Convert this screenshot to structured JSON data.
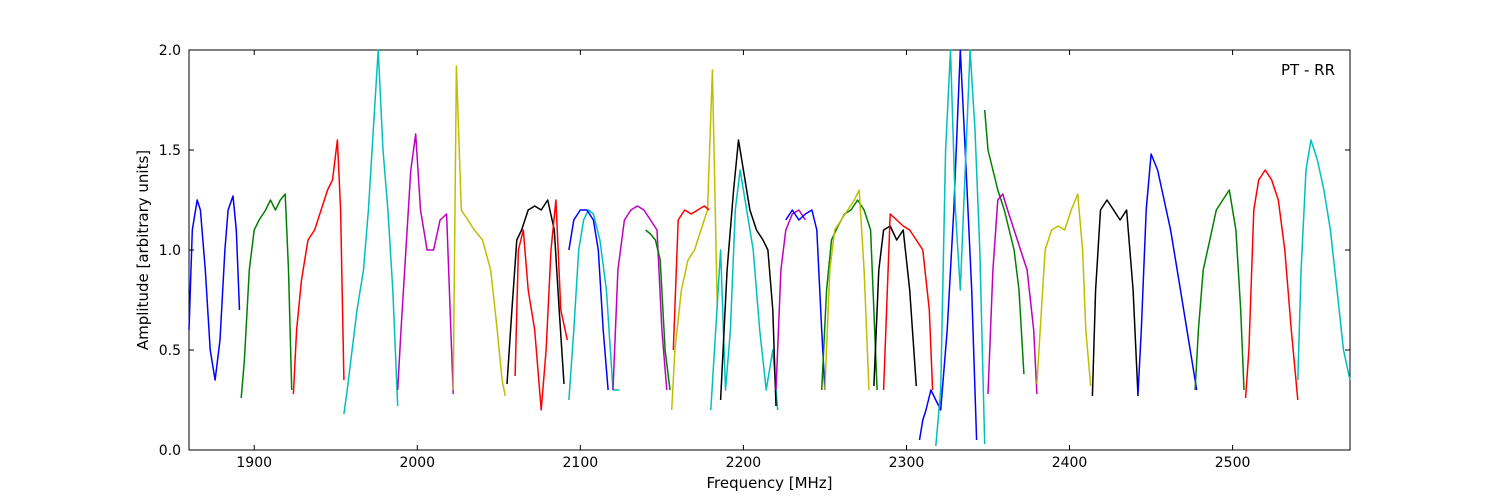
{
  "chart_data": {
    "type": "line",
    "title": "",
    "annotation": "PT - RR",
    "xlabel": "Frequency [MHz]",
    "ylabel": "Amplitude [arbitrary units]",
    "xlim": [
      1860,
      2572
    ],
    "ylim": [
      0.0,
      2.0
    ],
    "xticks": [
      1900,
      2000,
      2100,
      2200,
      2300,
      2400,
      2500
    ],
    "yticks": [
      0.0,
      0.5,
      1.0,
      1.5,
      2.0
    ],
    "xtick_labels": [
      "1900",
      "2000",
      "2100",
      "2200",
      "2300",
      "2400",
      "2500"
    ],
    "ytick_labels": [
      "0.0",
      "0.5",
      "1.0",
      "1.5",
      "2.0"
    ],
    "grid": false,
    "series": [
      {
        "color": "#0000ff",
        "x": [
          1860,
          1862,
          1865,
          1867,
          1870,
          1873,
          1876,
          1879,
          1882,
          1884,
          1887,
          1889,
          1891
        ],
        "y": [
          0.6,
          1.1,
          1.25,
          1.2,
          0.9,
          0.5,
          0.35,
          0.55,
          1.0,
          1.2,
          1.27,
          1.1,
          0.7
        ]
      },
      {
        "color": "#008000",
        "x": [
          1892,
          1894,
          1897,
          1900,
          1903,
          1907,
          1910,
          1913,
          1916,
          1919,
          1921,
          1923
        ],
        "y": [
          0.26,
          0.45,
          0.9,
          1.1,
          1.15,
          1.2,
          1.25,
          1.2,
          1.25,
          1.28,
          0.9,
          0.3
        ]
      },
      {
        "color": "#ff0000",
        "x": [
          1924,
          1926,
          1929,
          1933,
          1937,
          1941,
          1945,
          1948,
          1951,
          1953,
          1955
        ],
        "y": [
          0.28,
          0.6,
          0.85,
          1.05,
          1.1,
          1.2,
          1.3,
          1.35,
          1.55,
          1.2,
          0.35
        ]
      },
      {
        "color": "#00bfbf",
        "x": [
          1955,
          1957,
          1960,
          1963,
          1967,
          1970,
          1973,
          1976,
          1979,
          1982,
          1985,
          1988
        ],
        "y": [
          0.18,
          0.3,
          0.5,
          0.7,
          0.9,
          1.2,
          1.6,
          2.0,
          1.5,
          1.2,
          0.8,
          0.22
        ]
      },
      {
        "color": "#bf00bf",
        "x": [
          1988,
          1990,
          1993,
          1996,
          1999,
          2002,
          2006,
          2010,
          2014,
          2018,
          2022
        ],
        "y": [
          0.3,
          0.6,
          1.0,
          1.4,
          1.58,
          1.2,
          1.0,
          1.0,
          1.15,
          1.18,
          0.28
        ]
      },
      {
        "color": "#bfbf00",
        "x": [
          2022,
          2024,
          2027,
          2031,
          2035,
          2040,
          2045,
          2049,
          2052,
          2054
        ],
        "y": [
          0.3,
          1.92,
          1.2,
          1.15,
          1.1,
          1.05,
          0.9,
          0.6,
          0.35,
          0.27
        ]
      },
      {
        "color": "#000000",
        "x": [
          2055,
          2058,
          2061,
          2064,
          2068,
          2072,
          2076,
          2080,
          2084,
          2087,
          2090
        ],
        "y": [
          0.33,
          0.7,
          1.05,
          1.1,
          1.2,
          1.22,
          1.2,
          1.25,
          1.1,
          0.7,
          0.33
        ]
      },
      {
        "color": "#ff0000",
        "x": [
          2060,
          2062,
          2065,
          2068,
          2072,
          2076,
          2079,
          2082,
          2085,
          2088,
          2092
        ],
        "y": [
          0.37,
          1.0,
          1.1,
          0.8,
          0.6,
          0.2,
          0.5,
          1.0,
          1.25,
          0.7,
          0.55
        ]
      },
      {
        "color": "#00bfbf",
        "x": [
          2093,
          2096,
          2099,
          2102,
          2105,
          2108,
          2112,
          2116,
          2120,
          2124
        ],
        "y": [
          0.25,
          0.6,
          1.0,
          1.15,
          1.2,
          1.18,
          1.05,
          0.8,
          0.3,
          0.3
        ]
      },
      {
        "color": "#0000ff",
        "x": [
          2093,
          2096,
          2100,
          2104,
          2108,
          2111,
          2114,
          2117
        ],
        "y": [
          1.0,
          1.15,
          1.2,
          1.2,
          1.15,
          1.0,
          0.6,
          0.3
        ]
      },
      {
        "color": "#bf00bf",
        "x": [
          2120,
          2123,
          2127,
          2131,
          2135,
          2139,
          2143,
          2147,
          2150,
          2153
        ],
        "y": [
          0.3,
          0.9,
          1.15,
          1.2,
          1.22,
          1.2,
          1.15,
          1.1,
          0.6,
          0.3
        ]
      },
      {
        "color": "#008000",
        "x": [
          2140,
          2143,
          2146,
          2149,
          2152,
          2155
        ],
        "y": [
          1.1,
          1.08,
          1.05,
          0.95,
          0.5,
          0.3
        ]
      },
      {
        "color": "#bfbf00",
        "x": [
          2156,
          2158,
          2162,
          2166,
          2170,
          2174,
          2178,
          2181,
          2184
        ],
        "y": [
          0.2,
          0.5,
          0.8,
          0.95,
          1.0,
          1.1,
          1.2,
          1.9,
          0.7
        ]
      },
      {
        "color": "#ff0000",
        "x": [
          2157,
          2160,
          2164,
          2168,
          2172,
          2176,
          2179
        ],
        "y": [
          0.5,
          1.15,
          1.2,
          1.18,
          1.2,
          1.22,
          1.2
        ]
      },
      {
        "color": "#00bfbf",
        "x": [
          2180,
          2183,
          2186,
          2189,
          2192,
          2195,
          2198,
          2202,
          2206,
          2210,
          2214,
          2218,
          2221
        ],
        "y": [
          0.2,
          0.6,
          1.0,
          0.3,
          0.6,
          1.2,
          1.4,
          1.2,
          1.0,
          0.6,
          0.3,
          0.5,
          0.2
        ]
      },
      {
        "color": "#000000",
        "x": [
          2186,
          2190,
          2194,
          2197,
          2200,
          2204,
          2208,
          2212,
          2215,
          2218,
          2220
        ],
        "y": [
          0.25,
          0.9,
          1.3,
          1.55,
          1.4,
          1.2,
          1.1,
          1.05,
          1.0,
          0.7,
          0.22
        ]
      },
      {
        "color": "#bf00bf",
        "x": [
          2220,
          2223,
          2226,
          2230,
          2234,
          2238
        ],
        "y": [
          0.3,
          0.9,
          1.1,
          1.18,
          1.2,
          1.15
        ]
      },
      {
        "color": "#0000ff",
        "x": [
          2226,
          2230,
          2234,
          2238,
          2242,
          2245,
          2248,
          2250
        ],
        "y": [
          1.15,
          1.2,
          1.15,
          1.18,
          1.2,
          1.1,
          0.6,
          0.3
        ]
      },
      {
        "color": "#008000",
        "x": [
          2248,
          2251,
          2254,
          2258,
          2262,
          2266,
          2270,
          2274,
          2278,
          2282
        ],
        "y": [
          0.3,
          0.8,
          1.05,
          1.12,
          1.18,
          1.2,
          1.25,
          1.2,
          1.1,
          0.3
        ]
      },
      {
        "color": "#bfbf00",
        "x": [
          2250,
          2253,
          2256,
          2260,
          2264,
          2268,
          2271,
          2274,
          2277
        ],
        "y": [
          0.3,
          0.9,
          1.1,
          1.15,
          1.2,
          1.25,
          1.3,
          0.9,
          0.3
        ]
      },
      {
        "color": "#000000",
        "x": [
          2280,
          2283,
          2286,
          2290,
          2294,
          2298,
          2302,
          2306
        ],
        "y": [
          0.32,
          0.9,
          1.1,
          1.12,
          1.05,
          1.1,
          0.8,
          0.32
        ]
      },
      {
        "color": "#ff0000",
        "x": [
          2286,
          2290,
          2294,
          2298,
          2302,
          2306,
          2310,
          2314,
          2316
        ],
        "y": [
          0.3,
          1.18,
          1.15,
          1.12,
          1.1,
          1.05,
          1.0,
          0.7,
          0.3
        ]
      },
      {
        "color": "#0000ff",
        "x": [
          2308,
          2310,
          2312,
          2315,
          2318,
          2321,
          2325,
          2329,
          2333,
          2336,
          2340,
          2343
        ],
        "y": [
          0.05,
          0.15,
          0.2,
          0.3,
          0.25,
          0.2,
          0.6,
          1.2,
          2.0,
          1.5,
          0.8,
          0.05
        ]
      },
      {
        "color": "#00bfbf",
        "x": [
          2318,
          2321,
          2324,
          2327,
          2330,
          2333,
          2336,
          2339,
          2342,
          2345,
          2348
        ],
        "y": [
          0.02,
          0.3,
          1.5,
          2.0,
          1.2,
          0.8,
          1.4,
          2.0,
          1.6,
          1.0,
          0.03
        ]
      },
      {
        "color": "#008000",
        "x": [
          2348,
          2350,
          2353,
          2356,
          2360,
          2363,
          2366,
          2369,
          2372
        ],
        "y": [
          1.7,
          1.5,
          1.4,
          1.3,
          1.2,
          1.1,
          1.0,
          0.8,
          0.38
        ]
      },
      {
        "color": "#bf00bf",
        "x": [
          2350,
          2353,
          2356,
          2359,
          2362,
          2366,
          2370,
          2374,
          2378,
          2380
        ],
        "y": [
          0.28,
          0.9,
          1.25,
          1.28,
          1.2,
          1.1,
          1.0,
          0.9,
          0.6,
          0.28
        ]
      },
      {
        "color": "#bfbf00",
        "x": [
          2380,
          2382,
          2385,
          2389,
          2393,
          2397,
          2401,
          2405,
          2408,
          2410,
          2413
        ],
        "y": [
          0.33,
          0.6,
          1.0,
          1.1,
          1.12,
          1.1,
          1.2,
          1.28,
          1.0,
          0.6,
          0.32
        ]
      },
      {
        "color": "#000000",
        "x": [
          2414,
          2416,
          2419,
          2423,
          2427,
          2431,
          2435,
          2439,
          2442
        ],
        "y": [
          0.27,
          0.8,
          1.2,
          1.25,
          1.2,
          1.15,
          1.2,
          0.8,
          0.27
        ]
      },
      {
        "color": "#0000ff",
        "x": [
          2442,
          2444,
          2447,
          2450,
          2454,
          2458,
          2462,
          2466,
          2470,
          2474,
          2478
        ],
        "y": [
          0.28,
          0.6,
          1.2,
          1.48,
          1.4,
          1.25,
          1.1,
          0.9,
          0.7,
          0.5,
          0.3
        ]
      },
      {
        "color": "#008000",
        "x": [
          2477,
          2479,
          2482,
          2486,
          2490,
          2494,
          2498,
          2502,
          2505,
          2507
        ],
        "y": [
          0.3,
          0.6,
          0.9,
          1.05,
          1.2,
          1.25,
          1.3,
          1.1,
          0.7,
          0.3
        ]
      },
      {
        "color": "#ff0000",
        "x": [
          2508,
          2510,
          2513,
          2516,
          2520,
          2524,
          2528,
          2532,
          2536,
          2540
        ],
        "y": [
          0.26,
          0.5,
          1.2,
          1.35,
          1.4,
          1.35,
          1.25,
          1.0,
          0.6,
          0.25
        ]
      },
      {
        "color": "#00bfbf",
        "x": [
          2540,
          2542,
          2545,
          2548,
          2552,
          2556,
          2560,
          2564,
          2568,
          2572
        ],
        "y": [
          0.35,
          0.9,
          1.4,
          1.55,
          1.45,
          1.3,
          1.1,
          0.8,
          0.5,
          0.35
        ]
      }
    ]
  }
}
